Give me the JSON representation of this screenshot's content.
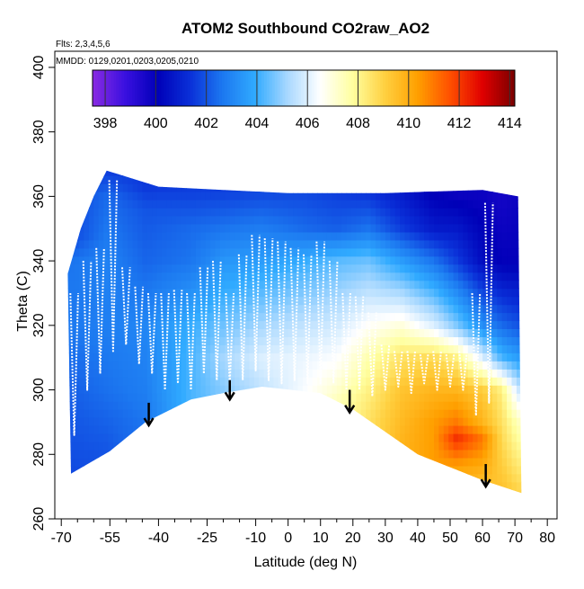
{
  "chart_data": {
    "type": "heatmap",
    "title": "ATOM2 Southbound CO2raw_AO2",
    "note_flights": "Flts: 2,3,4,5,6",
    "note_dates": "MMDD: 0129,0201,0203,0205,0210",
    "xlabel": "Latitude (deg N)",
    "ylabel": "Theta (C)",
    "xlim": [
      -72,
      83
    ],
    "ylim": [
      260,
      405
    ],
    "x_ticks": [
      -70,
      -55,
      -40,
      -25,
      -10,
      0,
      10,
      20,
      30,
      40,
      50,
      60,
      70,
      80
    ],
    "x_tick_labels": [
      "-70",
      "-55",
      "-40",
      "-25",
      "-10",
      "0",
      "10",
      "20",
      "30",
      "40",
      "50",
      "60",
      "70",
      "80"
    ],
    "x_minor_step": 5,
    "y_ticks": [
      260,
      280,
      300,
      320,
      340,
      360,
      380,
      400
    ],
    "y_tick_labels": [
      "260",
      "280",
      "300",
      "320",
      "340",
      "360",
      "380",
      "400"
    ],
    "colorbar": {
      "min": 397.5,
      "max": 414.2,
      "ticks": [
        398,
        400,
        402,
        404,
        406,
        408,
        410,
        412,
        414
      ],
      "tick_labels": [
        "398",
        "400",
        "402",
        "404",
        "406",
        "408",
        "410",
        "412",
        "414"
      ],
      "colors": [
        "#8a2be2",
        "#3a10e0",
        "#0000b8",
        "#0a30d8",
        "#1c78f0",
        "#30aaff",
        "#a8d8ff",
        "#ffffff",
        "#ffffa0",
        "#ffd040",
        "#ffa000",
        "#ff5000",
        "#e00000",
        "#7a0000"
      ]
    },
    "domain_outline": [
      [
        -68,
        336
      ],
      [
        -64,
        350
      ],
      [
        -60,
        360
      ],
      [
        -56,
        368
      ],
      [
        -40,
        363
      ],
      [
        -20,
        362
      ],
      [
        0,
        361
      ],
      [
        30,
        361
      ],
      [
        60,
        362
      ],
      [
        71,
        360
      ],
      [
        72,
        268
      ],
      [
        60,
        272
      ],
      [
        50,
        276
      ],
      [
        40,
        280
      ],
      [
        30,
        287
      ],
      [
        20,
        294
      ],
      [
        10,
        299
      ],
      [
        -8,
        301
      ],
      [
        -20,
        299
      ],
      [
        -30,
        297
      ],
      [
        -44,
        290
      ],
      [
        -55,
        281
      ],
      [
        -67,
        274
      ]
    ],
    "field_columns": [
      {
        "lat": -66,
        "values": [
          [
            274,
            401.8
          ],
          [
            300,
            402.2
          ],
          [
            320,
            402.7
          ],
          [
            340,
            402.6
          ],
          [
            348,
            401.8
          ]
        ]
      },
      {
        "lat": -56,
        "values": [
          [
            281,
            402.0
          ],
          [
            300,
            402.5
          ],
          [
            320,
            402.8
          ],
          [
            340,
            402.9
          ],
          [
            360,
            402.4
          ],
          [
            368,
            401.6
          ]
        ]
      },
      {
        "lat": -44,
        "values": [
          [
            290,
            402.6
          ],
          [
            300,
            402.8
          ],
          [
            320,
            403.0
          ],
          [
            340,
            402.3
          ],
          [
            356,
            402.0
          ],
          [
            363,
            401.5
          ]
        ]
      },
      {
        "lat": -30,
        "values": [
          [
            297,
            404.2
          ],
          [
            310,
            404.2
          ],
          [
            320,
            404.0
          ],
          [
            340,
            402.6
          ],
          [
            350,
            402.4
          ],
          [
            362,
            401.6
          ]
        ]
      },
      {
        "lat": -20,
        "values": [
          [
            299,
            404.8
          ],
          [
            310,
            405.2
          ],
          [
            320,
            404.6
          ],
          [
            340,
            403.4
          ],
          [
            350,
            402.6
          ],
          [
            362,
            401.6
          ]
        ]
      },
      {
        "lat": -8,
        "values": [
          [
            301,
            405.6
          ],
          [
            310,
            406.0
          ],
          [
            320,
            405.2
          ],
          [
            340,
            403.6
          ],
          [
            350,
            402.8
          ],
          [
            361,
            401.8
          ]
        ]
      },
      {
        "lat": 5,
        "values": [
          [
            300,
            406.4
          ],
          [
            310,
            406.2
          ],
          [
            320,
            405.6
          ],
          [
            340,
            404.0
          ],
          [
            350,
            402.4
          ],
          [
            361,
            401.8
          ]
        ]
      },
      {
        "lat": 15,
        "values": [
          [
            297,
            407.4
          ],
          [
            305,
            406.8
          ],
          [
            320,
            405.8
          ],
          [
            340,
            404.4
          ],
          [
            350,
            402.2
          ],
          [
            361,
            401.6
          ]
        ]
      },
      {
        "lat": 25,
        "values": [
          [
            291,
            408.6
          ],
          [
            300,
            408.2
          ],
          [
            310,
            407.6
          ],
          [
            320,
            406.6
          ],
          [
            340,
            404.6
          ],
          [
            350,
            402.6
          ],
          [
            361,
            401.4
          ]
        ]
      },
      {
        "lat": 35,
        "values": [
          [
            284,
            409.8
          ],
          [
            300,
            409.4
          ],
          [
            310,
            408.6
          ],
          [
            320,
            407.0
          ],
          [
            340,
            403.6
          ],
          [
            350,
            401.6
          ],
          [
            361,
            400.8
          ]
        ]
      },
      {
        "lat": 45,
        "values": [
          [
            279,
            410.4
          ],
          [
            290,
            410.4
          ],
          [
            300,
            409.8
          ],
          [
            310,
            408.8
          ],
          [
            320,
            406.0
          ],
          [
            340,
            402.6
          ],
          [
            350,
            400.8
          ],
          [
            361,
            400.0
          ]
        ]
      },
      {
        "lat": 52,
        "values": [
          [
            276,
            410.2
          ],
          [
            285,
            412.2
          ],
          [
            290,
            411.0
          ],
          [
            300,
            409.8
          ],
          [
            310,
            408.2
          ],
          [
            320,
            404.8
          ],
          [
            340,
            401.6
          ],
          [
            361,
            399.8
          ]
        ]
      },
      {
        "lat": 60,
        "values": [
          [
            272,
            409.6
          ],
          [
            285,
            411.0
          ],
          [
            290,
            409.8
          ],
          [
            300,
            409.2
          ],
          [
            310,
            406.0
          ],
          [
            320,
            403.2
          ],
          [
            340,
            400.4
          ],
          [
            361,
            399.8
          ]
        ]
      },
      {
        "lat": 66,
        "values": [
          [
            270,
            409.4
          ],
          [
            290,
            408.6
          ],
          [
            300,
            408.2
          ],
          [
            310,
            404.2
          ],
          [
            320,
            402.4
          ],
          [
            340,
            400.0
          ],
          [
            361,
            399.6
          ]
        ]
      },
      {
        "lat": 71,
        "values": [
          [
            268,
            409.0
          ],
          [
            290,
            407.4
          ],
          [
            300,
            405.8
          ],
          [
            310,
            403.6
          ],
          [
            320,
            402.0
          ],
          [
            340,
            400.0
          ],
          [
            361,
            399.8
          ]
        ]
      }
    ],
    "profiles": [
      {
        "lat": -66,
        "theta_low": 286,
        "theta_high": 330
      },
      {
        "lat": -62,
        "theta_low": 300,
        "theta_high": 340
      },
      {
        "lat": -58,
        "theta_low": 305,
        "theta_high": 344
      },
      {
        "lat": -54,
        "theta_low": 312,
        "theta_high": 365
      },
      {
        "lat": -50,
        "theta_low": 314,
        "theta_high": 338
      },
      {
        "lat": -46,
        "theta_low": 308,
        "theta_high": 332
      },
      {
        "lat": -42,
        "theta_low": 305,
        "theta_high": 330
      },
      {
        "lat": -38,
        "theta_low": 300,
        "theta_high": 330
      },
      {
        "lat": -34,
        "theta_low": 302,
        "theta_high": 331
      },
      {
        "lat": -30,
        "theta_low": 300,
        "theta_high": 330
      },
      {
        "lat": -26,
        "theta_low": 305,
        "theta_high": 338
      },
      {
        "lat": -22,
        "theta_low": 303,
        "theta_high": 340
      },
      {
        "lat": -18,
        "theta_low": 302,
        "theta_high": 330
      },
      {
        "lat": -14,
        "theta_low": 303,
        "theta_high": 342
      },
      {
        "lat": -10,
        "theta_low": 306,
        "theta_high": 348
      },
      {
        "lat": -6,
        "theta_low": 303,
        "theta_high": 347
      },
      {
        "lat": -2,
        "theta_low": 302,
        "theta_high": 346
      },
      {
        "lat": 2,
        "theta_low": 303,
        "theta_high": 344
      },
      {
        "lat": 6,
        "theta_low": 302,
        "theta_high": 342
      },
      {
        "lat": 10,
        "theta_low": 302,
        "theta_high": 346
      },
      {
        "lat": 14,
        "theta_low": 302,
        "theta_high": 340
      },
      {
        "lat": 18,
        "theta_low": 300,
        "theta_high": 330
      },
      {
        "lat": 22,
        "theta_low": 300,
        "theta_high": 329
      },
      {
        "lat": 26,
        "theta_low": 298,
        "theta_high": 324
      },
      {
        "lat": 30,
        "theta_low": 300,
        "theta_high": 314
      },
      {
        "lat": 34,
        "theta_low": 301,
        "theta_high": 312
      },
      {
        "lat": 38,
        "theta_low": 299,
        "theta_high": 312
      },
      {
        "lat": 42,
        "theta_low": 302,
        "theta_high": 311
      },
      {
        "lat": 46,
        "theta_low": 300,
        "theta_high": 312
      },
      {
        "lat": 50,
        "theta_low": 301,
        "theta_high": 311
      },
      {
        "lat": 54,
        "theta_low": 300,
        "theta_high": 312
      },
      {
        "lat": 58,
        "theta_low": 292,
        "theta_high": 330
      },
      {
        "lat": 62,
        "theta_low": 296,
        "theta_high": 358
      }
    ],
    "markers": [
      {
        "lat": -43,
        "theta_top": 296,
        "theta_tip": 289
      },
      {
        "lat": -18,
        "theta_top": 303,
        "theta_tip": 297
      },
      {
        "lat": 19,
        "theta_top": 300,
        "theta_tip": 293
      },
      {
        "lat": 61,
        "theta_top": 277,
        "theta_tip": 270
      }
    ]
  }
}
